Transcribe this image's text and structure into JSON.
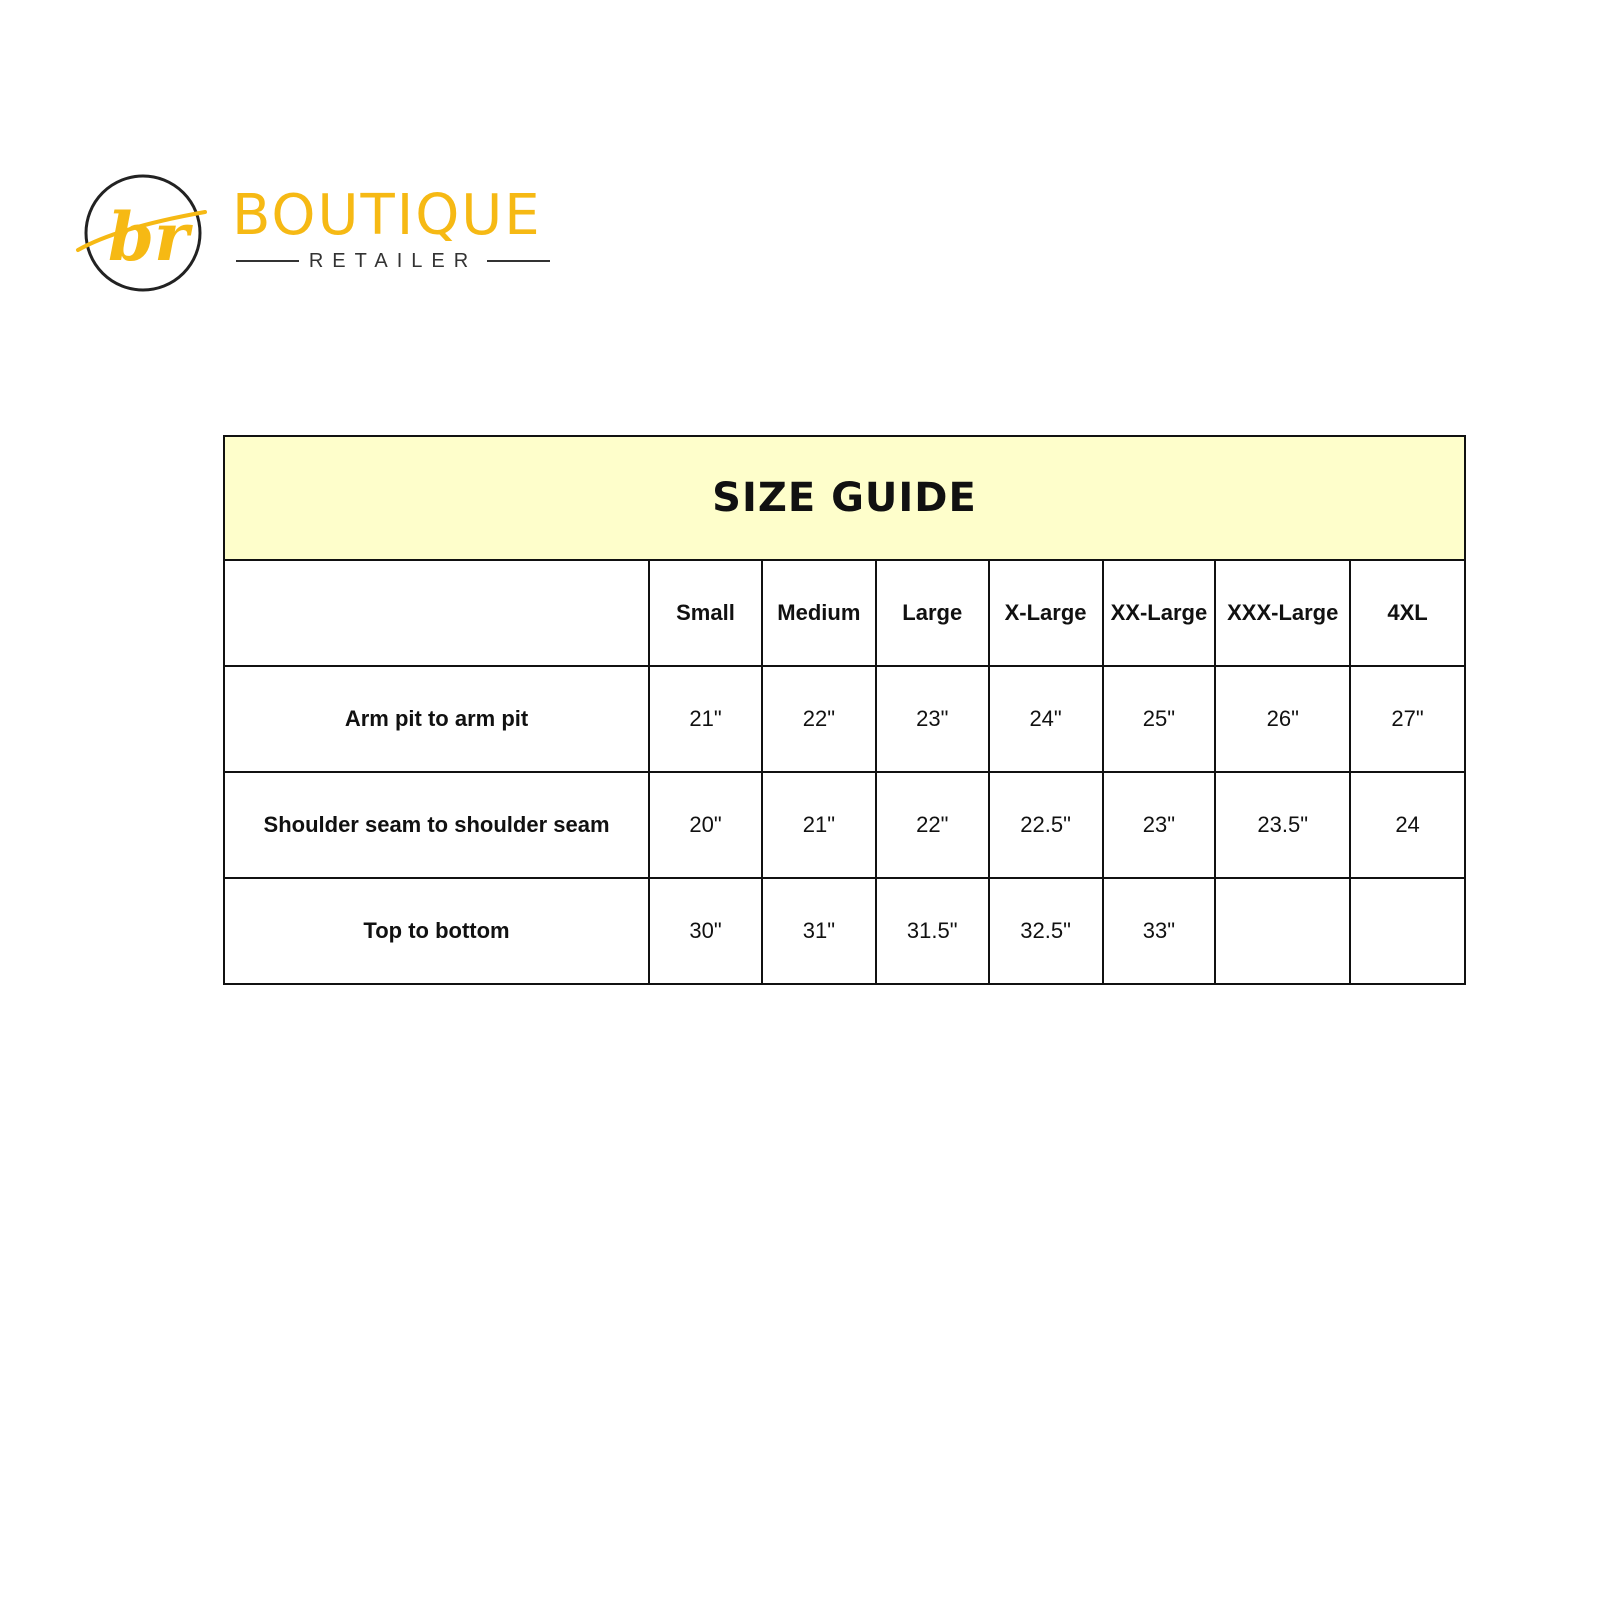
{
  "logo": {
    "monogram": "br",
    "name": "BOUTIQUE",
    "tagline": "RETAILER",
    "color": "#f6b914"
  },
  "table": {
    "title": "SIZE GUIDE",
    "header_color": "#fefecb",
    "sizes": [
      "Small",
      "Medium",
      "Large",
      "X-Large",
      "XX-Large",
      "XXX-Large",
      "4XL"
    ],
    "rows": [
      {
        "label": "Arm pit to arm pit",
        "values": [
          "21\"",
          "22\"",
          "23\"",
          "24\"",
          "25\"",
          "26\"",
          "27\""
        ]
      },
      {
        "label": "Shoulder seam to shoulder seam",
        "values": [
          "20\"",
          "21\"",
          "22\"",
          "22.5\"",
          "23\"",
          "23.5\"",
          "24"
        ]
      },
      {
        "label": "Top to bottom",
        "values": [
          "30\"",
          "31\"",
          "31.5\"",
          "32.5\"",
          "33\"",
          "",
          ""
        ]
      }
    ]
  }
}
